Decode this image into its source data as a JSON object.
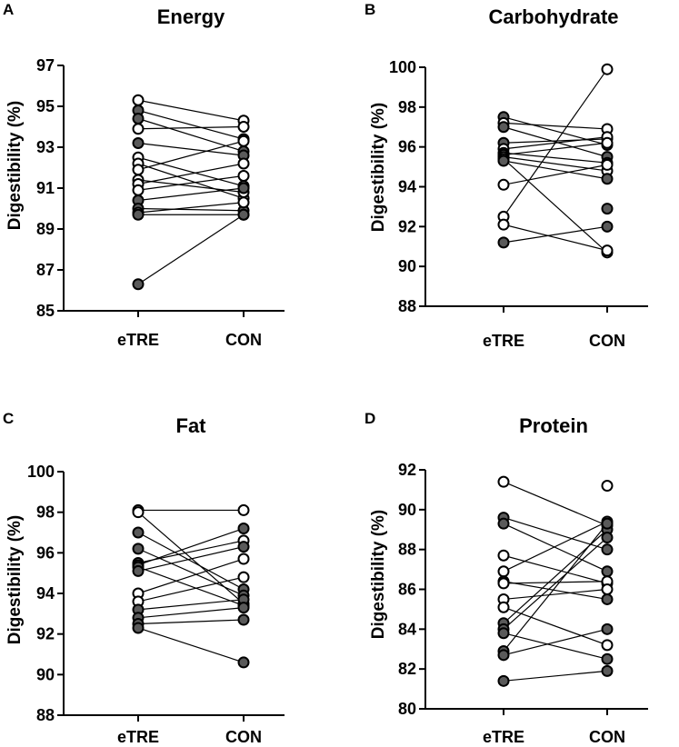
{
  "colors": {
    "filled": "#5a5a5a",
    "open": "#ffffff",
    "stroke": "#000000"
  },
  "chart_data": [
    {
      "panel": "A",
      "type": "scatter",
      "title": "Energy",
      "xlabel": "",
      "ylabel": "Digestibility (%)",
      "categories": [
        "eTRE",
        "CON"
      ],
      "ylim": [
        85,
        97
      ],
      "yticks": [
        85,
        87,
        89,
        91,
        93,
        95,
        97
      ],
      "pairs": [
        {
          "etre": 95.3,
          "con": 94.3,
          "filled": false
        },
        {
          "etre": 94.8,
          "con": 93.4,
          "filled": true
        },
        {
          "etre": 94.4,
          "con": 92.8,
          "filled": true
        },
        {
          "etre": 93.9,
          "con": 94.0,
          "filled": false
        },
        {
          "etre": 93.2,
          "con": 92.6,
          "filled": true
        },
        {
          "etre": 92.5,
          "con": 91.1,
          "filled": false
        },
        {
          "etre": 92.2,
          "con": 90.5,
          "filled": false
        },
        {
          "etre": 91.9,
          "con": 93.3,
          "filled": false
        },
        {
          "etre": 91.4,
          "con": 90.8,
          "filled": false
        },
        {
          "etre": 91.2,
          "con": 92.2,
          "filled": false
        },
        {
          "etre": 90.9,
          "con": 91.6,
          "filled": false
        },
        {
          "etre": 90.4,
          "con": 91.0,
          "filled": true
        },
        {
          "etre": 90.0,
          "con": 89.9,
          "filled": true
        },
        {
          "etre": 89.8,
          "con": 90.3,
          "filled": false
        },
        {
          "etre": 89.7,
          "con": 89.7,
          "filled": true
        },
        {
          "etre": 86.3,
          "con": 89.7,
          "filled": true
        }
      ]
    },
    {
      "panel": "B",
      "type": "scatter",
      "title": "Carbohydrate",
      "xlabel": "",
      "ylabel": "Digestibility (%)",
      "categories": [
        "eTRE",
        "CON"
      ],
      "ylim": [
        88,
        100
      ],
      "yticks": [
        88,
        90,
        92,
        94,
        96,
        98,
        100
      ],
      "pairs": [
        {
          "etre": 97.5,
          "con": 96.1,
          "filled": true
        },
        {
          "etre": 97.2,
          "con": 96.9,
          "filled": false
        },
        {
          "etre": 97.0,
          "con": 95.5,
          "filled": true
        },
        {
          "etre": 96.2,
          "con": 96.4,
          "filled": true
        },
        {
          "etre": 95.9,
          "con": 96.5,
          "filled": false
        },
        {
          "etre": 95.7,
          "con": 95.2,
          "filled": true
        },
        {
          "etre": 95.6,
          "con": 96.2,
          "filled": false
        },
        {
          "etre": 95.5,
          "con": 94.8,
          "filled": false
        },
        {
          "etre": 95.4,
          "con": 90.7,
          "filled": false
        },
        {
          "etre": 95.3,
          "con": 94.4,
          "filled": true
        },
        {
          "etre": 94.1,
          "con": 95.1,
          "filled": false
        },
        {
          "etre": 92.5,
          "con": 99.9,
          "filled": false
        },
        {
          "etre": 92.1,
          "con": 90.8,
          "filled": false
        },
        {
          "etre": 91.2,
          "con": 92.0,
          "filled": true
        },
        {
          "etre": null,
          "con": 92.9,
          "filled": true
        }
      ]
    },
    {
      "panel": "C",
      "type": "scatter",
      "title": "Fat",
      "xlabel": "",
      "ylabel": "Digestibility (%)",
      "categories": [
        "eTRE",
        "CON"
      ],
      "ylim": [
        88,
        100
      ],
      "yticks": [
        88,
        90,
        92,
        94,
        96,
        98,
        100
      ],
      "pairs": [
        {
          "etre": 98.1,
          "con": 98.1,
          "filled": false
        },
        {
          "etre": 98.0,
          "con": 93.5,
          "filled": false
        },
        {
          "etre": 97.0,
          "con": 94.2,
          "filled": true
        },
        {
          "etre": 96.2,
          "con": 93.9,
          "filled": true
        },
        {
          "etre": 95.5,
          "con": 96.6,
          "filled": false
        },
        {
          "etre": 95.4,
          "con": 97.2,
          "filled": true
        },
        {
          "etre": 95.3,
          "con": 93.4,
          "filled": true
        },
        {
          "etre": 95.1,
          "con": 96.3,
          "filled": true
        },
        {
          "etre": 94.0,
          "con": 95.7,
          "filled": false
        },
        {
          "etre": 93.6,
          "con": 94.8,
          "filled": false
        },
        {
          "etre": 93.2,
          "con": 93.7,
          "filled": true
        },
        {
          "etre": 92.8,
          "con": 93.3,
          "filled": true
        },
        {
          "etre": 92.5,
          "con": 92.7,
          "filled": true
        },
        {
          "etre": 92.3,
          "con": 90.6,
          "filled": true
        }
      ]
    },
    {
      "panel": "D",
      "type": "scatter",
      "title": "Protein",
      "xlabel": "",
      "ylabel": "Digestibility (%)",
      "categories": [
        "eTRE",
        "CON"
      ],
      "ylim": [
        80,
        92
      ],
      "yticks": [
        80,
        82,
        84,
        86,
        88,
        90,
        92
      ],
      "pairs": [
        {
          "etre": 91.4,
          "con": 89.2,
          "filled": false
        },
        {
          "etre": 89.6,
          "con": 88.0,
          "filled": true
        },
        {
          "etre": 89.3,
          "con": 86.9,
          "filled": true
        },
        {
          "etre": 87.7,
          "con": 86.3,
          "filled": false
        },
        {
          "etre": 86.9,
          "con": 89.4,
          "filled": false
        },
        {
          "etre": 86.4,
          "con": 85.5,
          "filled": true
        },
        {
          "etre": 86.3,
          "con": 86.4,
          "filled": false
        },
        {
          "etre": 85.5,
          "con": 86.0,
          "filled": false
        },
        {
          "etre": 85.1,
          "con": 83.2,
          "filled": false
        },
        {
          "etre": 84.3,
          "con": 89.0,
          "filled": true
        },
        {
          "etre": 84.0,
          "con": 88.6,
          "filled": true
        },
        {
          "etre": 83.8,
          "con": 82.5,
          "filled": true
        },
        {
          "etre": 82.9,
          "con": 89.3,
          "filled": true
        },
        {
          "etre": 82.7,
          "con": 84.0,
          "filled": true
        },
        {
          "etre": 81.4,
          "con": 81.9,
          "filled": true
        },
        {
          "etre": null,
          "con": 91.2,
          "filled": false
        }
      ]
    }
  ]
}
